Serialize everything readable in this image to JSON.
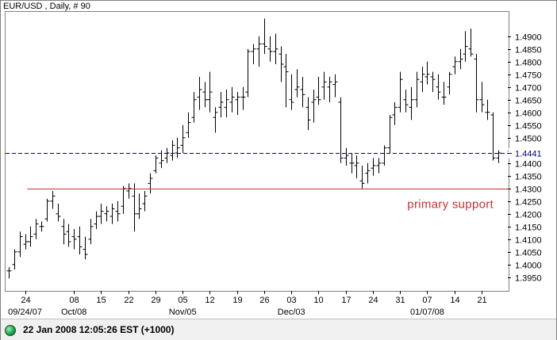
{
  "chart_title": "EUR/USD , Daily, # 90",
  "status": {
    "indicator_color": "#1a9a4a",
    "text": "22 Jan 2008 12:05:26  EST (+1000)"
  },
  "chart_data": {
    "type": "ohlc-bar",
    "symbol": "EUR/USD",
    "interval": "Daily",
    "ylim": [
      1.3915,
      1.4968
    ],
    "y_ticks": [
      1.395,
      1.4,
      1.405,
      1.41,
      1.415,
      1.42,
      1.425,
      1.43,
      1.435,
      1.44,
      1.445,
      1.45,
      1.455,
      1.46,
      1.465,
      1.47,
      1.475,
      1.48,
      1.485,
      1.49
    ],
    "y_tick_labels": [
      "1.3950",
      "1.4000",
      "1.4050",
      "1.4100",
      "1.4150",
      "1.4200",
      "1.4250",
      "1.4300",
      "1.4350",
      "1.4400",
      "1.4450",
      "1.4500",
      "1.4550",
      "1.4600",
      "1.4650",
      "1.4700",
      "1.4750",
      "1.4800",
      "1.4850",
      "1.4900"
    ],
    "x_ticks": [
      {
        "bar": 3,
        "label": "24"
      },
      {
        "bar": 12,
        "label": "08"
      },
      {
        "bar": 17,
        "label": "15"
      },
      {
        "bar": 22,
        "label": "22"
      },
      {
        "bar": 27,
        "label": "29"
      },
      {
        "bar": 32,
        "label": "05"
      },
      {
        "bar": 37,
        "label": "12"
      },
      {
        "bar": 42,
        "label": "19"
      },
      {
        "bar": 47,
        "label": "26"
      },
      {
        "bar": 52,
        "label": "03"
      },
      {
        "bar": 57,
        "label": "10"
      },
      {
        "bar": 62,
        "label": "17"
      },
      {
        "bar": 67,
        "label": "24"
      },
      {
        "bar": 72,
        "label": "31"
      },
      {
        "bar": 77,
        "label": "07"
      },
      {
        "bar": 82,
        "label": "14"
      },
      {
        "bar": 87,
        "label": "21"
      }
    ],
    "x_group_labels": [
      {
        "bar": 3,
        "label": "09/24/07"
      },
      {
        "bar": 12,
        "label": "Oct/08"
      },
      {
        "bar": 32,
        "label": "Nov/05"
      },
      {
        "bar": 52,
        "label": "Dec/03"
      },
      {
        "bar": 77,
        "label": "01/07/08"
      }
    ],
    "bars": [
      [
        1.3975,
        1.399,
        1.3945,
        1.3975
      ],
      [
        1.4,
        1.406,
        1.398,
        1.405
      ],
      [
        1.405,
        1.413,
        1.403,
        1.411
      ],
      [
        1.408,
        1.412,
        1.406,
        1.409
      ],
      [
        1.409,
        1.415,
        1.407,
        1.411
      ],
      [
        1.412,
        1.418,
        1.41,
        1.416
      ],
      [
        1.415,
        1.417,
        1.413,
        1.415
      ],
      [
        1.418,
        1.426,
        1.417,
        1.425
      ],
      [
        1.425,
        1.429,
        1.422,
        1.427
      ],
      [
        1.42,
        1.424,
        1.417,
        1.419
      ],
      [
        1.415,
        1.418,
        1.408,
        1.412
      ],
      [
        1.413,
        1.416,
        1.407,
        1.409
      ],
      [
        1.411,
        1.414,
        1.406,
        1.41
      ],
      [
        1.411,
        1.415,
        1.404,
        1.407
      ],
      [
        1.406,
        1.411,
        1.402,
        1.404
      ],
      [
        1.41,
        1.418,
        1.408,
        1.415
      ],
      [
        1.416,
        1.421,
        1.414,
        1.419
      ],
      [
        1.419,
        1.424,
        1.416,
        1.421
      ],
      [
        1.42,
        1.423,
        1.417,
        1.421
      ],
      [
        1.419,
        1.424,
        1.416,
        1.422
      ],
      [
        1.421,
        1.425,
        1.417,
        1.42
      ],
      [
        1.423,
        1.431,
        1.42,
        1.43
      ],
      [
        1.429,
        1.432,
        1.426,
        1.43
      ],
      [
        1.427,
        1.432,
        1.413,
        1.42
      ],
      [
        1.42,
        1.428,
        1.418,
        1.422
      ],
      [
        1.424,
        1.429,
        1.421,
        1.427
      ],
      [
        1.432,
        1.436,
        1.428,
        1.434
      ],
      [
        1.437,
        1.443,
        1.436,
        1.442
      ],
      [
        1.44,
        1.445,
        1.438,
        1.441
      ],
      [
        1.442,
        1.446,
        1.44,
        1.444
      ],
      [
        1.443,
        1.449,
        1.441,
        1.447
      ],
      [
        1.444,
        1.45,
        1.442,
        1.446
      ],
      [
        1.447,
        1.455,
        1.444,
        1.45
      ],
      [
        1.452,
        1.46,
        1.45,
        1.456
      ],
      [
        1.458,
        1.468,
        1.456,
        1.465
      ],
      [
        1.466,
        1.474,
        1.461,
        1.469
      ],
      [
        1.468,
        1.472,
        1.462,
        1.465
      ],
      [
        1.465,
        1.476,
        1.46,
        1.468
      ],
      [
        1.458,
        1.462,
        1.452,
        1.46
      ],
      [
        1.462,
        1.468,
        1.458,
        1.464
      ],
      [
        1.462,
        1.469,
        1.458,
        1.465
      ],
      [
        1.464,
        1.47,
        1.46,
        1.466
      ],
      [
        1.465,
        1.468,
        1.459,
        1.466
      ],
      [
        1.466,
        1.47,
        1.461,
        1.466
      ],
      [
        1.468,
        1.485,
        1.466,
        1.484
      ],
      [
        1.484,
        1.487,
        1.479,
        1.485
      ],
      [
        1.485,
        1.49,
        1.478,
        1.487
      ],
      [
        1.487,
        1.497,
        1.483,
        1.486
      ],
      [
        1.485,
        1.49,
        1.48,
        1.484
      ],
      [
        1.484,
        1.491,
        1.479,
        1.485
      ],
      [
        1.483,
        1.486,
        1.472,
        1.479
      ],
      [
        1.478,
        1.483,
        1.462,
        1.476
      ],
      [
        1.465,
        1.475,
        1.461,
        1.464
      ],
      [
        1.469,
        1.477,
        1.466,
        1.47
      ],
      [
        1.469,
        1.474,
        1.462,
        1.467
      ],
      [
        1.462,
        1.466,
        1.453,
        1.457
      ],
      [
        1.464,
        1.469,
        1.456,
        1.465
      ],
      [
        1.466,
        1.474,
        1.463,
        1.465
      ],
      [
        1.47,
        1.476,
        1.465,
        1.472
      ],
      [
        1.47,
        1.474,
        1.464,
        1.472
      ],
      [
        1.471,
        1.475,
        1.466,
        1.472
      ],
      [
        1.464,
        1.466,
        1.44,
        1.442
      ],
      [
        1.442,
        1.446,
        1.439,
        1.443
      ],
      [
        1.44,
        1.444,
        1.436,
        1.44
      ],
      [
        1.439,
        1.443,
        1.434,
        1.44
      ],
      [
        1.433,
        1.439,
        1.43,
        1.432
      ],
      [
        1.436,
        1.44,
        1.432,
        1.437
      ],
      [
        1.438,
        1.442,
        1.435,
        1.439
      ],
      [
        1.439,
        1.442,
        1.436,
        1.44
      ],
      [
        1.44,
        1.447,
        1.439,
        1.446
      ],
      [
        1.446,
        1.459,
        1.444,
        1.458
      ],
      [
        1.459,
        1.464,
        1.455,
        1.462
      ],
      [
        1.462,
        1.476,
        1.46,
        1.473
      ],
      [
        1.465,
        1.469,
        1.46,
        1.463
      ],
      [
        1.462,
        1.47,
        1.457,
        1.465
      ],
      [
        1.465,
        1.476,
        1.462,
        1.473
      ],
      [
        1.472,
        1.478,
        1.468,
        1.475
      ],
      [
        1.474,
        1.48,
        1.471,
        1.475
      ],
      [
        1.474,
        1.476,
        1.468,
        1.473
      ],
      [
        1.47,
        1.475,
        1.465,
        1.468
      ],
      [
        1.466,
        1.472,
        1.463,
        1.466
      ],
      [
        1.47,
        1.476,
        1.467,
        1.475
      ],
      [
        1.478,
        1.482,
        1.475,
        1.48
      ],
      [
        1.48,
        1.485,
        1.477,
        1.481
      ],
      [
        1.483,
        1.492,
        1.48,
        1.486
      ],
      [
        1.485,
        1.493,
        1.482,
        1.483
      ],
      [
        1.481,
        1.483,
        1.46,
        1.465
      ],
      [
        1.465,
        1.472,
        1.46,
        1.463
      ],
      [
        1.46,
        1.465,
        1.457,
        1.46
      ],
      [
        1.459,
        1.46,
        1.441,
        1.442
      ],
      [
        1.442,
        1.445,
        1.44,
        1.444
      ]
    ],
    "current_price": {
      "value": 1.4441,
      "label": "1.4441",
      "style": "dashed",
      "color": "#000080"
    },
    "annotations": [
      {
        "type": "hline",
        "value": 1.43,
        "label": "primary support",
        "color": "#c83030",
        "from_bar": 5
      }
    ],
    "grid": false,
    "bar_color": "#000000"
  }
}
